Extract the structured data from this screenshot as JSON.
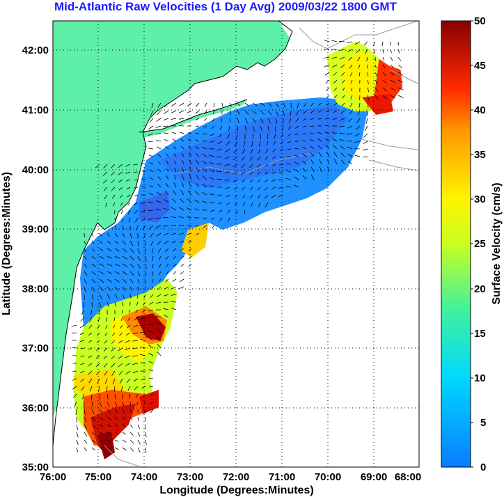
{
  "title": "Mid-Atlantic Raw Velocities (1 Day Avg) 2009/03/22 1800 GMT",
  "map": {
    "xlabel": "Longitude (Degrees:Minutes)",
    "ylabel": "Latitude (Degrees:Minutes)",
    "x_ticks": [
      "76:00",
      "75:00",
      "74:00",
      "73:00",
      "72:00",
      "71:00",
      "70:00",
      "69:00",
      "68:00"
    ],
    "y_ticks": [
      "42:00",
      "41:00",
      "40:00",
      "39:00",
      "38:00",
      "37:00",
      "36:00",
      "35:00"
    ],
    "land_color": "#5ef0a8",
    "grid": true
  },
  "colorbar": {
    "label": "Surface Velocity (cm/s)",
    "ticks": [
      "50",
      "45",
      "40",
      "35",
      "30",
      "25",
      "20",
      "15",
      "10",
      "5",
      "0"
    ],
    "min": 0,
    "max": 50
  }
}
